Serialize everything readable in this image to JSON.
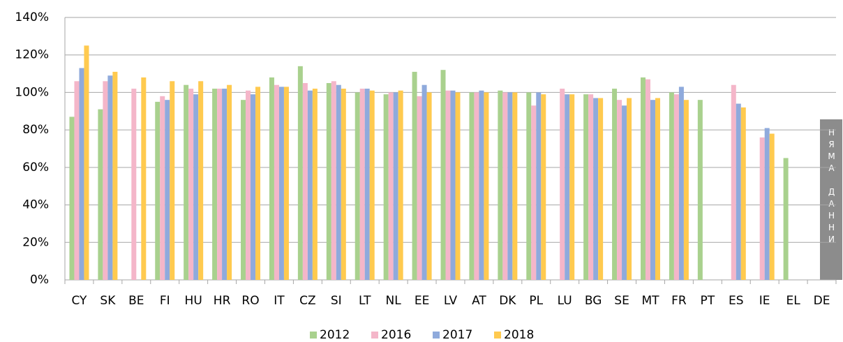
{
  "chart_data": {
    "type": "bar",
    "categories": [
      "CY",
      "SK",
      "BE",
      "FI",
      "HU",
      "HR",
      "RO",
      "IT",
      "CZ",
      "SI",
      "LT",
      "NL",
      "EE",
      "LV",
      "AT",
      "DK",
      "PL",
      "LU",
      "BG",
      "SE",
      "MT",
      "FR",
      "PT",
      "ES",
      "IE",
      "EL",
      "DE"
    ],
    "series": [
      {
        "name": "2012",
        "color": "#a9d18e",
        "values": [
          87,
          91,
          null,
          95,
          104,
          102,
          96,
          108,
          114,
          105,
          100,
          99,
          111,
          112,
          100,
          101,
          100,
          null,
          99,
          102,
          108,
          100,
          96,
          null,
          null,
          65,
          null
        ]
      },
      {
        "name": "2016",
        "color": "#f4b6c9",
        "values": [
          106,
          106,
          102,
          98,
          102,
          102,
          101,
          104,
          105,
          106,
          102,
          100,
          98,
          101,
          100,
          100,
          93,
          102,
          99,
          96,
          107,
          99,
          null,
          104,
          76,
          null,
          null
        ]
      },
      {
        "name": "2017",
        "color": "#8faadc",
        "values": [
          113,
          109,
          null,
          96,
          99,
          102,
          99,
          103,
          101,
          104,
          102,
          100,
          104,
          101,
          101,
          100,
          100,
          99,
          97,
          93,
          96,
          103,
          null,
          94,
          81,
          null,
          null
        ]
      },
      {
        "name": "2018",
        "color": "#ffca4f",
        "values": [
          125,
          111,
          108,
          106,
          106,
          104,
          103,
          103,
          102,
          102,
          101,
          101,
          100,
          100,
          100,
          100,
          99,
          99,
          97,
          97,
          97,
          96,
          null,
          92,
          78,
          null,
          null
        ]
      }
    ],
    "ylim": [
      0,
      140
    ],
    "yticks": [
      {
        "value": 0,
        "label": "0%"
      },
      {
        "value": 20,
        "label": "20%"
      },
      {
        "value": 40,
        "label": "40%"
      },
      {
        "value": 60,
        "label": "60%"
      },
      {
        "value": 80,
        "label": "80%"
      },
      {
        "value": 100,
        "label": "100%"
      },
      {
        "value": 120,
        "label": "120%"
      },
      {
        "value": 140,
        "label": "140%"
      }
    ],
    "grid": true,
    "legend": "bottom",
    "annotation": "НЯМА ДАННИ"
  }
}
